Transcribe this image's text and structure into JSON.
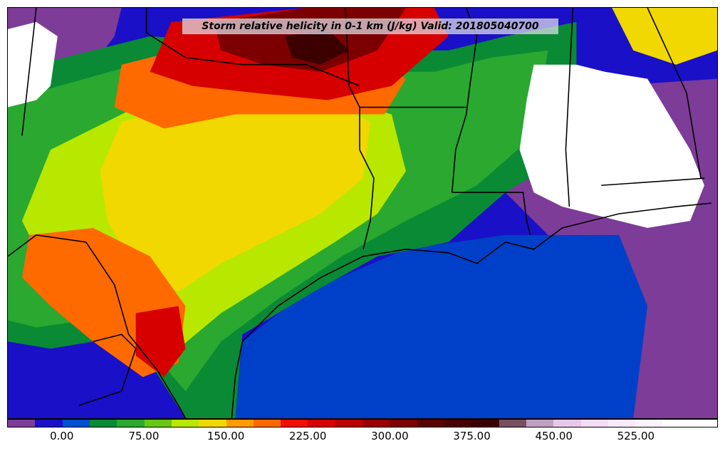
{
  "title": "Storm relative helicity in 0-1 km (J/kg) Valid: 201805040700",
  "colorbar": {
    "min": -50,
    "max": 600,
    "step": 25,
    "colors": [
      "#7d3c98",
      "#1a10c8",
      "#0050d0",
      "#0a8a34",
      "#2aa830",
      "#66c814",
      "#b8e800",
      "#f0d800",
      "#ff9a00",
      "#ff6a00",
      "#f01000",
      "#d60000",
      "#b80000",
      "#9a0000",
      "#7d0000",
      "#5a0000",
      "#4a0000",
      "#3c0000",
      "#7a5060",
      "#c0a0c0",
      "#e8c8e8",
      "#f4dcf4",
      "#f8eaf8",
      "#fcf4fc",
      "#ffffff",
      "#ffffff"
    ],
    "tick_labels": [
      "0.00",
      "75.00",
      "150.00",
      "225.00",
      "300.00",
      "375.00",
      "450.00",
      "525.00"
    ],
    "tick_values": [
      0,
      75,
      150,
      225,
      300,
      375,
      450,
      525
    ]
  },
  "map": {
    "region": "Southern Plains and Gulf Coast",
    "background_color": "#1a10c8",
    "colors": {
      "deep_red": "#7d0000",
      "red": "#d60000",
      "orange": "#ff6a00",
      "yellow": "#f0d800",
      "yellow_green": "#b8e800",
      "green": "#2aa830",
      "dark_green": "#0a8a34",
      "blue": "#0050d0",
      "purple": "#7d3c98",
      "white": "#ffffff",
      "border": "#000000"
    }
  }
}
